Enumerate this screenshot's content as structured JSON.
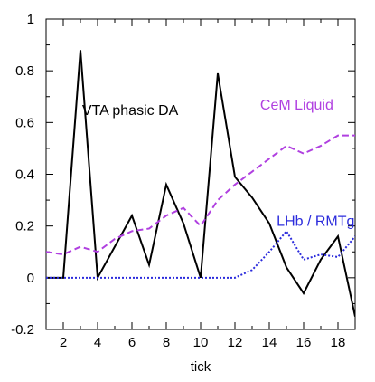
{
  "chart_data": {
    "type": "line",
    "title": "",
    "xlabel": "tick",
    "ylabel": "",
    "xlim": [
      1,
      19
    ],
    "ylim": [
      -0.2,
      1
    ],
    "x_ticks": [
      2,
      4,
      6,
      8,
      10,
      12,
      14,
      16,
      18
    ],
    "y_ticks": [
      -0.2,
      0,
      0.2,
      0.4,
      0.6,
      0.8,
      1
    ],
    "y_tick_labels": [
      "-0.2",
      "0",
      "0.2",
      "0.4",
      "0.6",
      "0.8",
      "1"
    ],
    "x_tick_labels": [
      "2",
      "4",
      "6",
      "8",
      "10",
      "12",
      "14",
      "16",
      "18"
    ],
    "grid": false,
    "series": [
      {
        "name": "VTA phasic DA",
        "color": "#000000",
        "style": "solid",
        "x": [
          1,
          2,
          3,
          4,
          5,
          6,
          7,
          8,
          9,
          10,
          11,
          12,
          13,
          14,
          15,
          16,
          17,
          18,
          19
        ],
        "y": [
          0,
          0,
          0.88,
          0,
          0.12,
          0.24,
          0.05,
          0.36,
          0.21,
          0,
          0.79,
          0.39,
          0.31,
          0.21,
          0.04,
          -0.06,
          0.07,
          0.16,
          -0.15
        ]
      },
      {
        "name": "CeM Liquid",
        "color": "#b040e0",
        "style": "dashed",
        "x": [
          1,
          2,
          3,
          4,
          5,
          6,
          7,
          8,
          9,
          10,
          11,
          12,
          13,
          14,
          15,
          16,
          17,
          18,
          19
        ],
        "y": [
          0.1,
          0.09,
          0.12,
          0.1,
          0.15,
          0.18,
          0.19,
          0.24,
          0.27,
          0.2,
          0.3,
          0.36,
          0.41,
          0.46,
          0.51,
          0.48,
          0.51,
          0.55,
          0.55
        ]
      },
      {
        "name": "LHb / RMTg",
        "color": "#2b2bdc",
        "style": "dotted",
        "x": [
          1,
          2,
          3,
          4,
          5,
          6,
          7,
          8,
          9,
          10,
          11,
          12,
          13,
          14,
          15,
          16,
          17,
          18,
          19
        ],
        "y": [
          0,
          0,
          0,
          0,
          0,
          0,
          0,
          0,
          0,
          0,
          0,
          0,
          0.03,
          0.1,
          0.18,
          0.07,
          0.09,
          0.08,
          0.16
        ]
      }
    ],
    "annotations": [
      {
        "text": "VTA phasic DA",
        "series": 0,
        "x": 5.9,
        "y": 0.63,
        "anchor": "middle"
      },
      {
        "text": "CeM Liquid",
        "series": 1,
        "x": 15.6,
        "y": 0.65,
        "anchor": "middle"
      },
      {
        "text": "LHb / RMTg",
        "series": 2,
        "x": 16.7,
        "y": 0.2,
        "anchor": "middle"
      }
    ]
  }
}
